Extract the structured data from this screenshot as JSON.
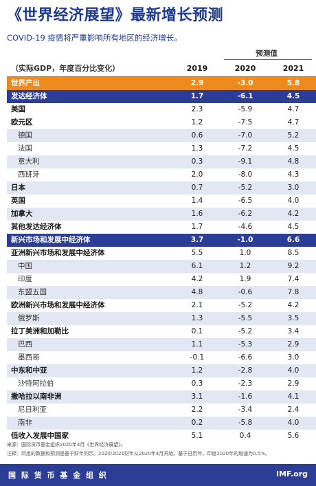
{
  "title": "《世界经济展望》最新增长预测",
  "subtitle": "COVID-19 疫情将严重影响所有地区的经济增长。",
  "projection_label": "预测值",
  "header": {
    "label": "（实际GDP，年度百分比变化）",
    "years": [
      "2019",
      "2020",
      "2021"
    ]
  },
  "rows": [
    {
      "name": "世界产出",
      "values": [
        "2.9",
        "-3.0",
        "5.8"
      ],
      "style": "world"
    },
    {
      "name": "发达经济体",
      "values": [
        "1.7",
        "-6.1",
        "4.5"
      ],
      "style": "group"
    },
    {
      "name": "美国",
      "values": [
        "2.3",
        "-5.9",
        "4.7"
      ],
      "style": "white"
    },
    {
      "name": "欧元区",
      "values": [
        "1.2",
        "-7.5",
        "4.7"
      ],
      "style": "white"
    },
    {
      "name": "德国",
      "values": [
        "0.6",
        "-7.0",
        "5.2"
      ],
      "style": "blue",
      "sub": true
    },
    {
      "name": "法国",
      "values": [
        "1.3",
        "-7.2",
        "4.5"
      ],
      "style": "white",
      "sub": true
    },
    {
      "name": "意大利",
      "values": [
        "0.3",
        "-9.1",
        "4.8"
      ],
      "style": "blue",
      "sub": true
    },
    {
      "name": "西班牙",
      "values": [
        "2.0",
        "-8.0",
        "4.3"
      ],
      "style": "white",
      "sub": true
    },
    {
      "name": "日本",
      "values": [
        "0.7",
        "-5.2",
        "3.0"
      ],
      "style": "blue"
    },
    {
      "name": "英国",
      "values": [
        "1.4",
        "-6.5",
        "4.0"
      ],
      "style": "white"
    },
    {
      "name": "加拿大",
      "values": [
        "1.6",
        "-6.2",
        "4.2"
      ],
      "style": "blue"
    },
    {
      "name": "其他发达经济体",
      "values": [
        "1.7",
        "-4.6",
        "4.5"
      ],
      "style": "white"
    },
    {
      "name": "新兴市场和发展中经济体",
      "values": [
        "3.7",
        "-1.0",
        "6.6"
      ],
      "style": "group"
    },
    {
      "name": "亚洲新兴市场和发展中经济体",
      "values": [
        "5.5",
        "1.0",
        "8.5"
      ],
      "style": "white"
    },
    {
      "name": "中国",
      "values": [
        "6.1",
        "1.2",
        "9.2"
      ],
      "style": "blue",
      "sub": true
    },
    {
      "name": "印度",
      "values": [
        "4.2",
        "1.9",
        "7.4"
      ],
      "style": "white",
      "sub": true
    },
    {
      "name": "东盟五国",
      "values": [
        "4.8",
        "-0.6",
        "7.8"
      ],
      "style": "blue",
      "sub": true
    },
    {
      "name": "欧洲新兴市场和发展中经济体",
      "values": [
        "2.1",
        "-5.2",
        "4.2"
      ],
      "style": "white"
    },
    {
      "name": "俄罗斯",
      "values": [
        "1.3",
        "-5.5",
        "3.5"
      ],
      "style": "blue",
      "sub": true
    },
    {
      "name": "拉丁美洲和加勒比",
      "values": [
        "0.1",
        "-5.2",
        "3.4"
      ],
      "style": "white"
    },
    {
      "name": "巴西",
      "values": [
        "1.1",
        "-5.3",
        "2.9"
      ],
      "style": "blue",
      "sub": true
    },
    {
      "name": "墨西哥",
      "values": [
        "-0.1",
        "-6.6",
        "3.0"
      ],
      "style": "white",
      "sub": true
    },
    {
      "name": "中东和中亚",
      "values": [
        "1.2",
        "-2.8",
        "4.0"
      ],
      "style": "blue"
    },
    {
      "name": "沙特阿拉伯",
      "values": [
        "0.3",
        "-2.3",
        "2.9"
      ],
      "style": "white",
      "sub": true
    },
    {
      "name": "撒哈拉以南非洲",
      "values": [
        "3.1",
        "-1.6",
        "4.1"
      ],
      "style": "blue"
    },
    {
      "name": "尼日利亚",
      "values": [
        "2.2",
        "-3.4",
        "2.4"
      ],
      "style": "white",
      "sub": true
    },
    {
      "name": "南非",
      "values": [
        "0.2",
        "-5.8",
        "4.0"
      ],
      "style": "blue",
      "sub": true
    },
    {
      "name": "低收入发展中国家",
      "values": [
        "5.1",
        "0.4",
        "5.6"
      ],
      "style": "white"
    }
  ],
  "notes": {
    "source": "来源：国际货币基金组织2020年4月《世界经济展望》。",
    "note": "注释：印度的数据和预测是基于财年列示。2020/2021财年从2020年4月开始。基于日历年，印度2020年的增速为0.5%。"
  },
  "footer": {
    "org": "国 际 货 币 基 金 组 织",
    "site": "IMF.org"
  }
}
